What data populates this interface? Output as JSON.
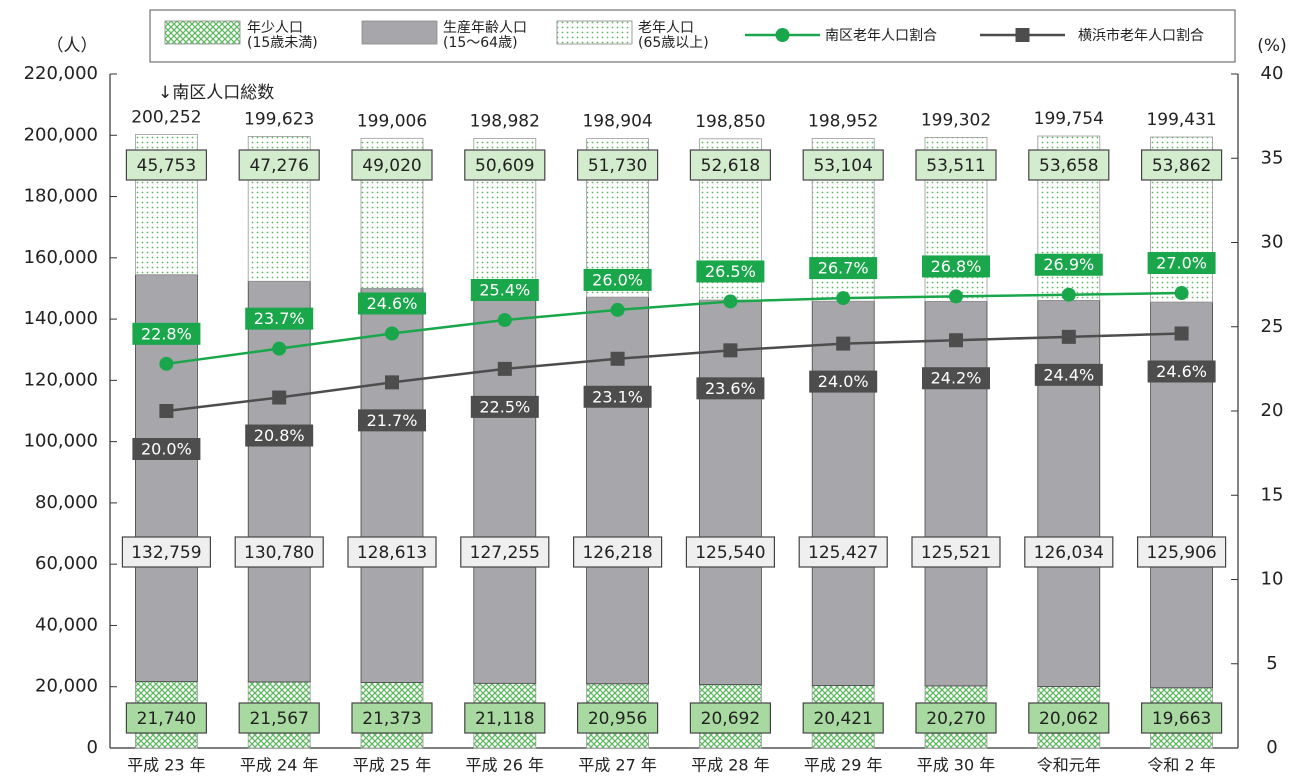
{
  "chart_data": {
    "type": "bar",
    "categories": [
      "平成 23 年",
      "平成 24 年",
      "平成 25 年",
      "平成 26 年",
      "平成 27 年",
      "平成 28 年",
      "平成 29 年",
      "平成 30 年",
      "令和元年",
      "令和 2 年"
    ],
    "series": [
      {
        "name": "年少人口\n(15歳未満)",
        "color": "#5cb85f",
        "values": [
          21740,
          21567,
          21373,
          21118,
          20956,
          20692,
          20421,
          20270,
          20062,
          19663
        ],
        "value_labels": [
          "21,740",
          "21,567",
          "21,373",
          "21,118",
          "20,956",
          "20,692",
          "20,421",
          "20,270",
          "20,062",
          "19,663"
        ]
      },
      {
        "name": "生産年齢人口\n(15〜64歳)",
        "color": "#a7a6ab",
        "values": [
          132759,
          130780,
          128613,
          127255,
          126218,
          125540,
          125427,
          125521,
          126034,
          125906
        ],
        "value_labels": [
          "132,759",
          "130,780",
          "128,613",
          "127,255",
          "126,218",
          "125,540",
          "125,427",
          "125,521",
          "126,034",
          "125,906"
        ]
      },
      {
        "name": "老年人口\n(65歳以上)",
        "color": "#5cb85f",
        "values": [
          45753,
          47276,
          49020,
          50609,
          51730,
          52618,
          53104,
          53511,
          53658,
          53862
        ],
        "value_labels": [
          "45,753",
          "47,276",
          "49,020",
          "50,609",
          "51,730",
          "52,618",
          "53,104",
          "53,511",
          "53,658",
          "53,862"
        ]
      },
      {
        "name": "南区老年人口割合",
        "type": "line",
        "axis": "y2",
        "color": "#1aa64a",
        "values": [
          22.8,
          23.7,
          24.6,
          25.4,
          26.0,
          26.5,
          26.7,
          26.8,
          26.9,
          27.0
        ],
        "value_labels": [
          "22.8%",
          "23.7%",
          "24.6%",
          "25.4%",
          "26.0%",
          "26.5%",
          "26.7%",
          "26.8%",
          "26.9%",
          "27.0%"
        ]
      },
      {
        "name": "横浜市老年人口割合",
        "type": "line",
        "axis": "y2",
        "color": "#4d4d4d",
        "values": [
          20.0,
          20.8,
          21.7,
          22.5,
          23.1,
          23.6,
          24.0,
          24.2,
          24.4,
          24.6
        ],
        "value_labels": [
          "20.0%",
          "20.8%",
          "21.7%",
          "22.5%",
          "23.1%",
          "23.6%",
          "24.0%",
          "24.2%",
          "24.4%",
          "24.6%"
        ]
      }
    ],
    "totals": {
      "values": [
        200252,
        199623,
        199006,
        198982,
        198904,
        198850,
        198952,
        199302,
        199754,
        199431
      ],
      "value_labels": [
        "200,252",
        "199,623",
        "199,006",
        "198,982",
        "198,904",
        "198,850",
        "198,952",
        "199,302",
        "199,754",
        "199,431"
      ]
    },
    "annotation": "↓南区人口総数",
    "y_label": "（人）",
    "y2_label": "(%)",
    "ylim": [
      0,
      220000
    ],
    "yticks": [
      0,
      {
        "value": 20000,
        "label": "20,000"
      },
      {
        "value": 40000,
        "label": "40,000"
      },
      {
        "value": 60000,
        "label": "60,000"
      },
      {
        "value": 80000,
        "label": "80,000"
      },
      {
        "value": 100000,
        "label": "100,000"
      },
      {
        "value": 120000,
        "label": "120,000"
      },
      {
        "value": 140000,
        "label": "140,000"
      },
      {
        "value": 160000,
        "label": "160,000"
      },
      {
        "value": 180000,
        "label": "180,000"
      },
      {
        "value": 200000,
        "label": "200,000"
      },
      {
        "value": 220000,
        "label": "220,000"
      }
    ],
    "y2lim": [
      0,
      40
    ],
    "y2ticks": [
      0,
      5,
      10,
      15,
      20,
      25,
      30,
      35,
      40
    ]
  }
}
